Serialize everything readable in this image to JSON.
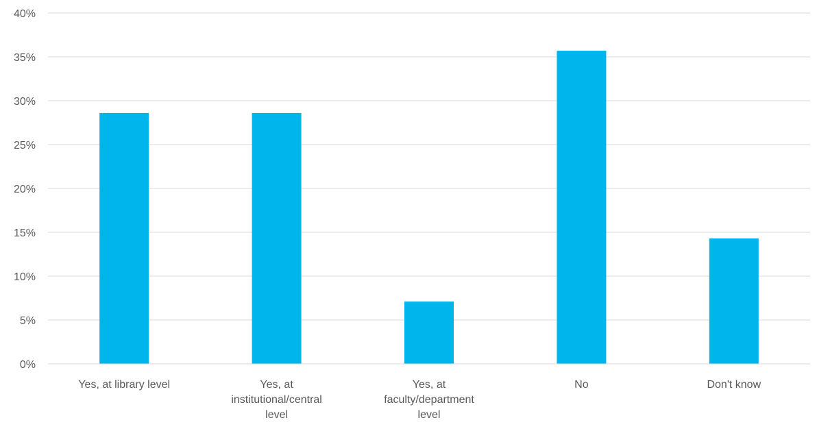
{
  "chart_data": {
    "type": "bar",
    "categories": [
      [
        "Yes, at library level"
      ],
      [
        "Yes, at",
        "institutional/central",
        "level"
      ],
      [
        "Yes, at",
        "faculty/department",
        "level"
      ],
      [
        "No"
      ],
      [
        "Don't know"
      ]
    ],
    "values": [
      28.6,
      28.6,
      7.1,
      35.7,
      14.3
    ],
    "ylim": [
      0,
      40
    ],
    "yticks": [
      0,
      5,
      10,
      15,
      20,
      25,
      30,
      35,
      40
    ],
    "tick_format": "{v}%",
    "title": "",
    "xlabel": "",
    "ylabel": "",
    "grid": true,
    "legend": "none",
    "bar_color": "#00b4ec"
  }
}
